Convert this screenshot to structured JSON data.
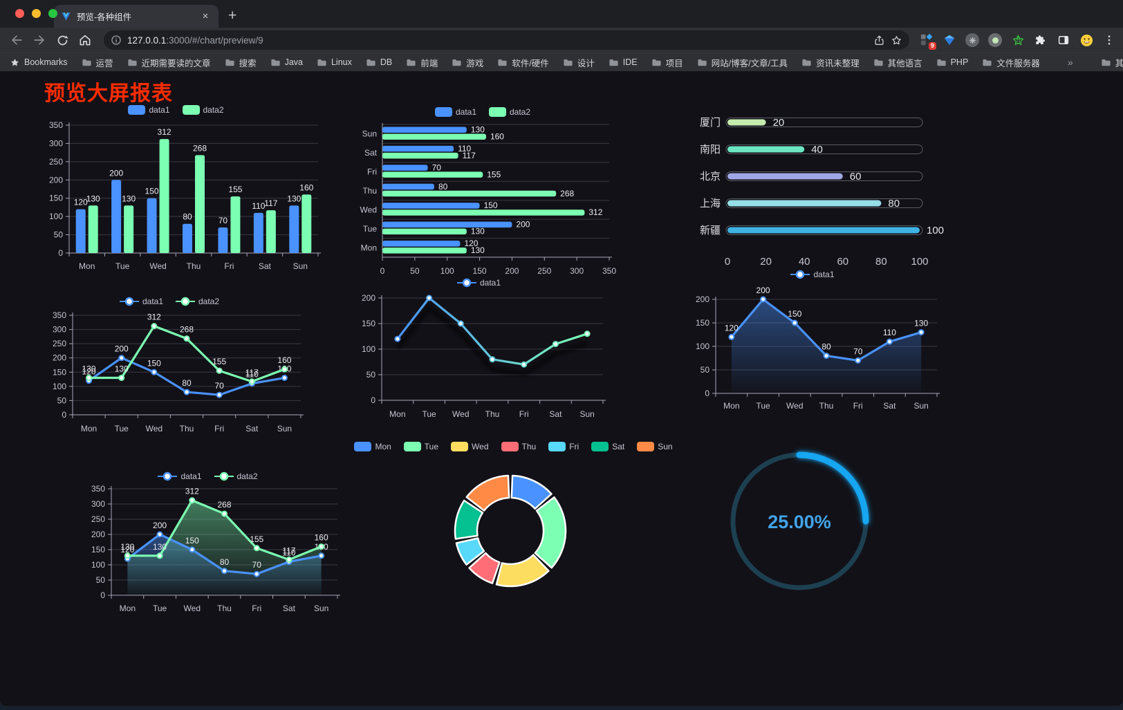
{
  "browser": {
    "tab": {
      "title": "预览-各种组件",
      "close": "×"
    },
    "new_tab": "+",
    "url": {
      "host": "127.0.0.1",
      "path": ":3000/#/chart/preview/9"
    },
    "extensions_badge": "9",
    "bookmarks_bar": {
      "star_label": "Bookmarks",
      "folders": [
        "运营",
        "近期需要读的文章",
        "搜索",
        "Java",
        "Linux",
        "DB",
        "前端",
        "游戏",
        "软件/硬件",
        "设计",
        "IDE",
        "项目",
        "网站/博客/文章/工具",
        "资讯未整理",
        "其他语言",
        "PHP",
        "文件服务器"
      ],
      "overflow": "»",
      "other": "其他书签"
    }
  },
  "page": {
    "title": "预览大屏报表",
    "title_color": "#fe2c00",
    "background": "#121117"
  },
  "chart_data": [
    {
      "id": "bar-vertical",
      "type": "bar",
      "legend": [
        "data1",
        "data2"
      ],
      "legend_icon": "rect",
      "categories": [
        "Mon",
        "Tue",
        "Wed",
        "Thu",
        "Fri",
        "Sat",
        "Sun"
      ],
      "series": [
        {
          "name": "data1",
          "color": "#4992ff",
          "values": [
            120,
            200,
            150,
            80,
            70,
            110,
            130
          ]
        },
        {
          "name": "data2",
          "color": "#7cffb2",
          "values": [
            130,
            130,
            312,
            268,
            155,
            117,
            160
          ]
        }
      ],
      "ylim": [
        0,
        350
      ],
      "ystep": 50
    },
    {
      "id": "bar-horizontal",
      "type": "bar-h",
      "legend": [
        "data1",
        "data2"
      ],
      "legend_icon": "rect",
      "categories": [
        "Mon",
        "Tue",
        "Wed",
        "Thu",
        "Fri",
        "Sat",
        "Sun"
      ],
      "series": [
        {
          "name": "data1",
          "color": "#4992ff",
          "values": [
            120,
            200,
            150,
            80,
            70,
            110,
            130
          ]
        },
        {
          "name": "data2",
          "color": "#7cffb2",
          "values": [
            130,
            130,
            312,
            268,
            155,
            117,
            160
          ]
        }
      ],
      "xlim": [
        0,
        350
      ],
      "xstep": 50
    },
    {
      "id": "progress",
      "type": "progress",
      "items": [
        {
          "label": "厦门",
          "value": 20,
          "color": "#c4ebad"
        },
        {
          "label": "南阳",
          "value": 40,
          "color": "#6be6c1"
        },
        {
          "label": "北京",
          "value": 60,
          "color": "#a0a7e6"
        },
        {
          "label": "上海",
          "value": 80,
          "color": "#96dee8"
        },
        {
          "label": "新疆",
          "value": 100,
          "color": "#3fb1e3"
        }
      ],
      "xlim": [
        0,
        100
      ],
      "xticks": [
        0,
        20,
        40,
        60,
        80,
        100
      ]
    },
    {
      "id": "line-dual",
      "type": "line",
      "legend": [
        "data1",
        "data2"
      ],
      "legend_icon": "line",
      "categories": [
        "Mon",
        "Tue",
        "Wed",
        "Thu",
        "Fri",
        "Sat",
        "Sun"
      ],
      "series": [
        {
          "name": "data1",
          "color": "#4992ff",
          "values": [
            120,
            200,
            150,
            80,
            70,
            110,
            130
          ]
        },
        {
          "name": "data2",
          "color": "#7cffb2",
          "values": [
            130,
            130,
            312,
            268,
            155,
            117,
            160
          ]
        }
      ],
      "ylim": [
        0,
        350
      ],
      "ystep": 50,
      "point_labels": true
    },
    {
      "id": "line-gradient",
      "type": "line",
      "legend": [
        "data1"
      ],
      "legend_icon": "line",
      "categories": [
        "Mon",
        "Tue",
        "Wed",
        "Thu",
        "Fri",
        "Sat",
        "Sun"
      ],
      "series": [
        {
          "name": "data1",
          "color": "#4992ff",
          "gradient": [
            "#4992ff",
            "#7cffb2"
          ],
          "shadow": true,
          "values": [
            120,
            200,
            150,
            80,
            70,
            110,
            130
          ]
        }
      ],
      "ylim": [
        0,
        200
      ],
      "ystep": 50,
      "point_labels": false
    },
    {
      "id": "line-area",
      "type": "line",
      "legend": [
        "data1"
      ],
      "legend_icon": "line",
      "categories": [
        "Mon",
        "Tue",
        "Wed",
        "Thu",
        "Fri",
        "Sat",
        "Sun"
      ],
      "series": [
        {
          "name": "data1",
          "color": "#4992ff",
          "area": true,
          "values": [
            120,
            200,
            150,
            80,
            70,
            110,
            130
          ]
        }
      ],
      "ylim": [
        0,
        200
      ],
      "ystep": 50,
      "point_labels": true
    },
    {
      "id": "line-area-dual",
      "type": "line",
      "legend": [
        "data1",
        "data2"
      ],
      "legend_icon": "line",
      "categories": [
        "Mon",
        "Tue",
        "Wed",
        "Thu",
        "Fri",
        "Sat",
        "Sun"
      ],
      "series": [
        {
          "name": "data1",
          "color": "#4992ff",
          "area": true,
          "values": [
            120,
            200,
            150,
            80,
            70,
            110,
            130
          ]
        },
        {
          "name": "data2",
          "color": "#7cffb2",
          "area": true,
          "values": [
            130,
            130,
            312,
            268,
            155,
            117,
            160
          ]
        }
      ],
      "ylim": [
        0,
        350
      ],
      "ystep": 50,
      "point_labels": true
    },
    {
      "id": "donut",
      "type": "pie",
      "legend": [
        "Mon",
        "Tue",
        "Wed",
        "Thu",
        "Fri",
        "Sat",
        "Sun"
      ],
      "legend_icon": "rect",
      "categories": [
        "Mon",
        "Tue",
        "Wed",
        "Thu",
        "Fri",
        "Sat",
        "Sun"
      ],
      "values": [
        120,
        200,
        150,
        80,
        70,
        110,
        130
      ],
      "colors": [
        "#4992ff",
        "#7cffb2",
        "#fddd60",
        "#ff6e76",
        "#58d9f9",
        "#05c091",
        "#ff8a45"
      ]
    },
    {
      "id": "gauge",
      "type": "gauge",
      "value": 25,
      "display": "25.00%",
      "color": "#19a6f2",
      "track_color": "#1d4051",
      "text_color": "#41a4e9"
    }
  ]
}
